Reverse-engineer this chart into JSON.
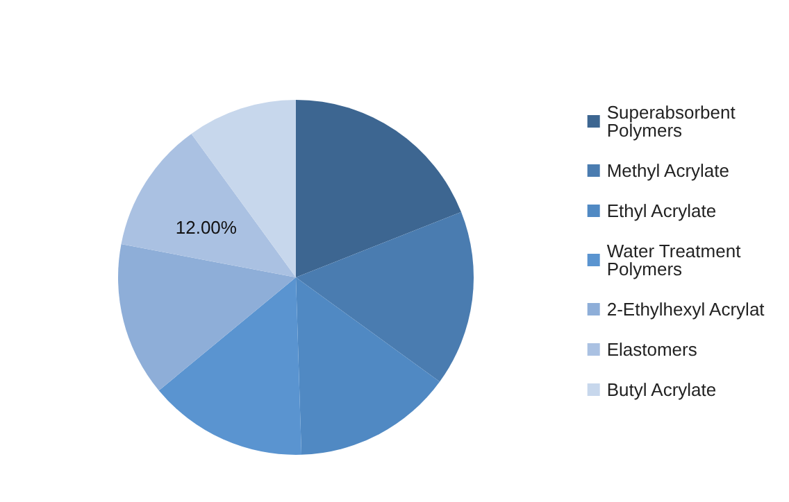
{
  "chart_data": {
    "type": "pie",
    "categories": [
      "Superabsorbent Polymers",
      "Methyl Acrylate",
      "Ethyl Acrylate",
      "Water Treatment Polymers",
      "2-Ethylhexyl Acrylat",
      "Elastomers",
      "Butyl Acrylate"
    ],
    "values": [
      19,
      16,
      14.5,
      14.5,
      14,
      12,
      10
    ],
    "colors": [
      "#3d6691",
      "#4a7cb0",
      "#5089c3",
      "#5a94d0",
      "#8eaed8",
      "#aac1e2",
      "#c7d7ec"
    ],
    "value_labels": [
      null,
      null,
      null,
      null,
      null,
      "12.00%",
      null
    ],
    "legend": "right"
  }
}
